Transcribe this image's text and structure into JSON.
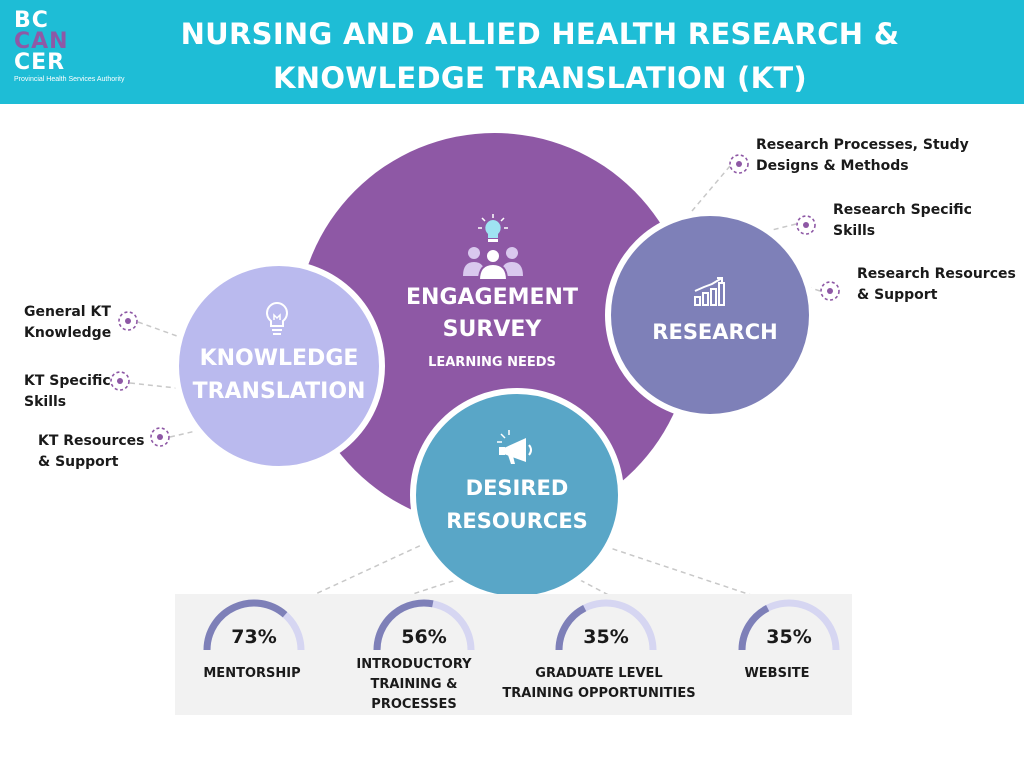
{
  "header": {
    "logo_lines": [
      "BC",
      "CAN",
      "CER"
    ],
    "logo_sub": "Provincial Health Services Authority",
    "title_line1": "NURSING AND ALLIED HEALTH RESEARCH &",
    "title_line2": "KNOWLEDGE TRANSLATION (KT)"
  },
  "survey": {
    "title_line1": "ENGAGEMENT",
    "title_line2": "SURVEY",
    "subtitle": "LEARNING NEEDS",
    "icon": "people-lightbulb-icon"
  },
  "kt": {
    "title_line1": "KNOWLEDGE",
    "title_line2": "TRANSLATION",
    "icon": "lightbulb-icon",
    "items": [
      {
        "line1": "General KT",
        "line2": "Knowledge"
      },
      {
        "line1": "KT Specific",
        "line2": "Skills"
      },
      {
        "line1": "KT Resources",
        "line2": "& Support"
      }
    ]
  },
  "research": {
    "title": "RESEARCH",
    "icon": "bar-chart-icon",
    "items": [
      {
        "line1": "Research Processes, Study",
        "line2": "Designs & Methods"
      },
      {
        "line1": "Research Specific",
        "line2": "Skills"
      },
      {
        "line1": "Research Resources",
        "line2": "& Support"
      }
    ]
  },
  "desired": {
    "title_line1": "DESIRED",
    "title_line2": "RESOURCES",
    "icon": "megaphone-icon"
  },
  "stats": [
    {
      "percent": "73%",
      "value": 73,
      "label_lines": [
        "MENTORSHIP"
      ]
    },
    {
      "percent": "56%",
      "value": 56,
      "label_lines": [
        "INTRODUCTORY",
        "TRAINING &",
        "PROCESSES"
      ]
    },
    {
      "percent": "35%",
      "value": 35,
      "label_lines": [
        "GRADUATE LEVEL",
        "TRAINING OPPORTUNITIES"
      ]
    },
    {
      "percent": "35%",
      "value": 35,
      "label_lines": [
        "WEBSITE"
      ]
    }
  ],
  "colors": {
    "header_bg": "#1ebdd6",
    "survey_purple": "#8e58a5",
    "kt_lavender": "#babaee",
    "research_indigo": "#7e80b8",
    "desired_blue": "#59a6c7",
    "gauge_fill": "#7e80b8",
    "gauge_track": "#d6d6f2"
  }
}
